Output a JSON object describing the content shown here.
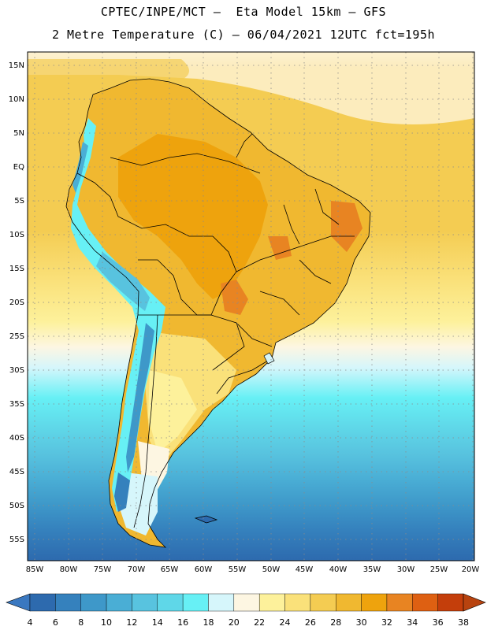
{
  "header": {
    "line1": "CPTEC/INPE/MCT –  Eta Model 15km – GFS",
    "line2": "2 Metre Temperature (C) – 06/04/2021 12UTC fct=195h"
  },
  "axes": {
    "lat_labels": [
      "15N",
      "10N",
      "5N",
      "EQ",
      "5S",
      "10S",
      "15S",
      "20S",
      "25S",
      "30S",
      "35S",
      "40S",
      "45S",
      "50S",
      "55S"
    ],
    "lon_labels": [
      "85W",
      "80W",
      "75W",
      "70W",
      "65W",
      "60W",
      "55W",
      "50W",
      "45W",
      "40W",
      "35W",
      "30W",
      "25W",
      "20W"
    ]
  },
  "colorbar": {
    "labels": [
      "4",
      "6",
      "8",
      "10",
      "12",
      "14",
      "16",
      "18",
      "20",
      "22",
      "24",
      "26",
      "28",
      "30",
      "32",
      "34",
      "36",
      "38"
    ],
    "colors": [
      "#2d6aae",
      "#3581bd",
      "#3e98c9",
      "#4aaed5",
      "#58c3df",
      "#5fd7e8",
      "#67f0f5",
      "#d6f6fb",
      "#fdf6e2",
      "#fdf19b",
      "#fae17a",
      "#f4cc52",
      "#f0b830",
      "#eea30d",
      "#e88422",
      "#de6012",
      "#c43e0b"
    ],
    "under_color": "#3a78c0",
    "over_color": "#b8430f"
  }
}
